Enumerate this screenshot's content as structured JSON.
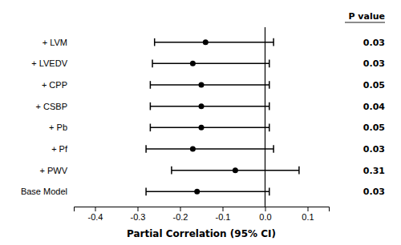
{
  "chart_data": {
    "type": "forest",
    "categories": [
      "+ LVM",
      "+ LVEDV",
      "+ CPP",
      "+ CSBP",
      "+ Pb",
      "+ Pf",
      "+ PWV",
      "Base Model"
    ],
    "values": [
      -0.14,
      -0.17,
      -0.15,
      -0.15,
      -0.15,
      -0.17,
      -0.07,
      -0.16
    ],
    "ci_low": [
      -0.26,
      -0.265,
      -0.27,
      -0.27,
      -0.27,
      -0.28,
      -0.22,
      -0.28
    ],
    "ci_high": [
      0.02,
      0.01,
      0.01,
      0.01,
      0.01,
      0.02,
      0.08,
      0.01
    ],
    "p_values": [
      "0.03",
      "0.03",
      "0.05",
      "0.04",
      "0.05",
      "0.03",
      "0.31",
      "0.03"
    ],
    "p_header": "P value",
    "xlabel": "Partial Correlation (95% CI)",
    "xlim": [
      -0.45,
      0.15
    ],
    "xticks": [
      -0.4,
      -0.3,
      -0.2,
      -0.1,
      {
        "value": 0.0,
        "label": "0.0"
      },
      0.1
    ],
    "vline": 0.0,
    "color": "black",
    "grid": false
  }
}
